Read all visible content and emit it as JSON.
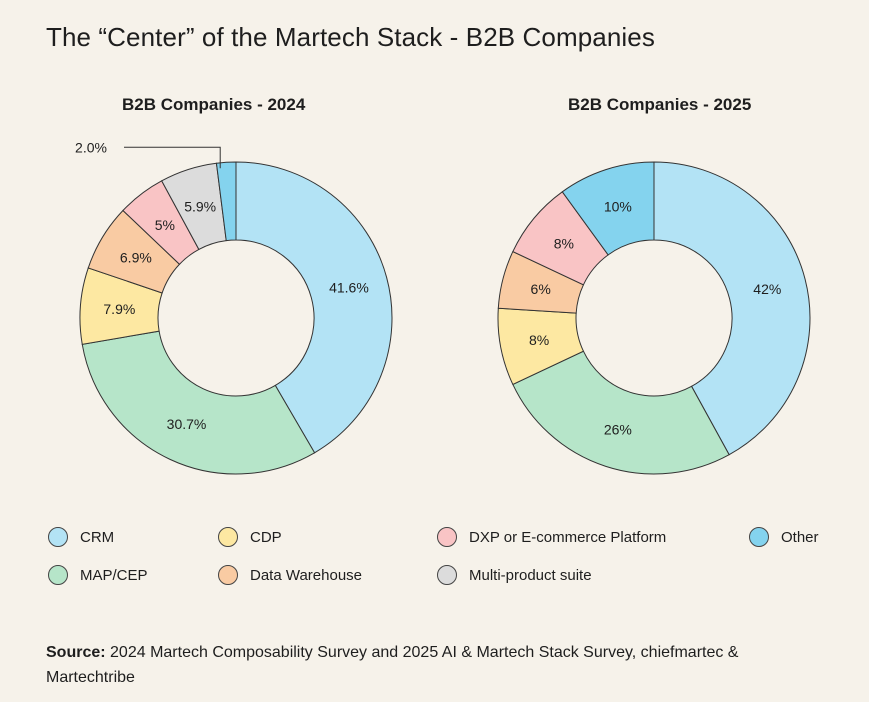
{
  "title": "The “Center” of the Martech Stack - B2B Companies",
  "legend": [
    {
      "key": "crm",
      "label": "CRM",
      "color": "#b3e3f5"
    },
    {
      "key": "cdp",
      "label": "CDP",
      "color": "#fde8a2"
    },
    {
      "key": "dxp",
      "label": "DXP or E-commerce Platform",
      "color": "#f9c4c5"
    },
    {
      "key": "other",
      "label": "Other",
      "color": "#84d3ee"
    },
    {
      "key": "map",
      "label": "MAP/CEP",
      "color": "#b6e5c9"
    },
    {
      "key": "dw",
      "label": "Data Warehouse",
      "color": "#f9cba3"
    },
    {
      "key": "multi",
      "label": "Multi-product suite",
      "color": "#dcdcdc"
    }
  ],
  "source": {
    "label": "Source:",
    "text": "2024 Martech Composability Survey and 2025 AI & Martech Stack Survey, chiefmartec & Martechtribe"
  },
  "chart_data": [
    {
      "type": "pie",
      "title": "B2B Companies - 2024",
      "donut": true,
      "slices": [
        {
          "label": "CRM",
          "value": 41.6,
          "display": "41.6%",
          "color": "#b3e3f5"
        },
        {
          "label": "MAP/CEP",
          "value": 30.7,
          "display": "30.7%",
          "color": "#b6e5c9"
        },
        {
          "label": "CDP",
          "value": 7.9,
          "display": "7.9%",
          "color": "#fde8a2"
        },
        {
          "label": "Data Warehouse",
          "value": 6.9,
          "display": "6.9%",
          "color": "#f9cba3"
        },
        {
          "label": "DXP or E-commerce Platform",
          "value": 5,
          "display": "5%",
          "color": "#f9c4c5"
        },
        {
          "label": "Multi-product suite",
          "value": 5.9,
          "display": "5.9%",
          "color": "#dcdcdc"
        },
        {
          "label": "Other",
          "value": 2.0,
          "display": "2.0%",
          "color": "#84d3ee",
          "callout": true
        }
      ]
    },
    {
      "type": "pie",
      "title": "B2B Companies - 2025",
      "donut": true,
      "slices": [
        {
          "label": "CRM",
          "value": 42,
          "display": "42%",
          "color": "#b3e3f5"
        },
        {
          "label": "MAP/CEP",
          "value": 26,
          "display": "26%",
          "color": "#b6e5c9"
        },
        {
          "label": "CDP",
          "value": 8,
          "display": "8%",
          "color": "#fde8a2"
        },
        {
          "label": "Data Warehouse",
          "value": 6,
          "display": "6%",
          "color": "#f9cba3"
        },
        {
          "label": "DXP or E-commerce Platform",
          "value": 8,
          "display": "8%",
          "color": "#f9c4c5"
        },
        {
          "label": "Other",
          "value": 10,
          "display": "10%",
          "color": "#84d3ee"
        }
      ]
    }
  ]
}
